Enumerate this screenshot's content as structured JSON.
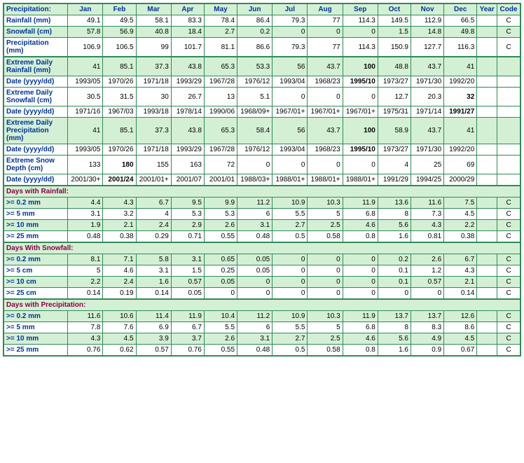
{
  "colors": {
    "border": "#2e8b57",
    "alt_bg": "#d4f0d4",
    "label_fg": "#003399",
    "section_fg": "#880044"
  },
  "header": [
    "Precipitation:",
    "Jan",
    "Feb",
    "Mar",
    "Apr",
    "May",
    "Jun",
    "Jul",
    "Aug",
    "Sep",
    "Oct",
    "Nov",
    "Dec",
    "Year",
    "Code"
  ],
  "rows": [
    {
      "label": "Rainfall (mm)",
      "alt": false,
      "top": false,
      "vals": [
        "49.1",
        "49.5",
        "58.1",
        "83.3",
        "78.4",
        "86.4",
        "79.3",
        "77",
        "114.3",
        "149.5",
        "112.9",
        "66.5",
        "",
        "C"
      ],
      "bold": []
    },
    {
      "label": "Snowfall (cm)",
      "alt": true,
      "top": false,
      "vals": [
        "57.8",
        "56.9",
        "40.8",
        "18.4",
        "2.7",
        "0.2",
        "0",
        "0",
        "0",
        "1.5",
        "14.8",
        "49.8",
        "",
        "C"
      ],
      "bold": []
    },
    {
      "label": "Precipitation (mm)",
      "alt": false,
      "top": false,
      "vals": [
        "106.9",
        "106.5",
        "99",
        "101.7",
        "81.1",
        "86.6",
        "79.3",
        "77",
        "114.3",
        "150.9",
        "127.7",
        "116.3",
        "",
        "C"
      ],
      "bold": []
    },
    {
      "label": "Extreme Daily Rainfall (mm)",
      "alt": true,
      "top": true,
      "vals": [
        "41",
        "85.1",
        "37.3",
        "43.8",
        "65.3",
        "53.3",
        "56",
        "43.7",
        "100",
        "48.8",
        "43.7",
        "41",
        "",
        ""
      ],
      "bold": [
        8
      ]
    },
    {
      "label": "Date (yyyy/dd)",
      "alt": false,
      "top": false,
      "vals": [
        "1993/05",
        "1970/26",
        "1971/18",
        "1993/29",
        "1967/28",
        "1976/12",
        "1993/04",
        "1968/23",
        "1995/10",
        "1973/27",
        "1971/30",
        "1992/20",
        "",
        ""
      ],
      "bold": [
        8
      ]
    },
    {
      "label": "Extreme Daily Snowfall (cm)",
      "alt": false,
      "top": false,
      "vals": [
        "30.5",
        "31.5",
        "30",
        "26.7",
        "13",
        "5.1",
        "0",
        "0",
        "0",
        "12.7",
        "20.3",
        "32",
        "",
        ""
      ],
      "bold": [
        11
      ]
    },
    {
      "label": "Date (yyyy/dd)",
      "alt": false,
      "top": false,
      "vals": [
        "1971/16",
        "1967/03",
        "1993/18",
        "1978/14",
        "1990/06",
        "1968/09+",
        "1967/01+",
        "1967/01+",
        "1967/01+",
        "1975/31",
        "1971/14",
        "1991/27",
        "",
        ""
      ],
      "bold": [
        11
      ]
    },
    {
      "label": "Extreme Daily Precipitation (mm)",
      "alt": true,
      "top": false,
      "vals": [
        "41",
        "85.1",
        "37.3",
        "43.8",
        "65.3",
        "58.4",
        "56",
        "43.7",
        "100",
        "58.9",
        "43.7",
        "41",
        "",
        ""
      ],
      "bold": [
        8
      ]
    },
    {
      "label": "Date (yyyy/dd)",
      "alt": false,
      "top": false,
      "vals": [
        "1993/05",
        "1970/26",
        "1971/18",
        "1993/29",
        "1967/28",
        "1976/12",
        "1993/04",
        "1968/23",
        "1995/10",
        "1973/27",
        "1971/30",
        "1992/20",
        "",
        ""
      ],
      "bold": [
        8
      ]
    },
    {
      "label": "Extreme Snow Depth (cm)",
      "alt": false,
      "top": false,
      "vals": [
        "133",
        "180",
        "155",
        "163",
        "72",
        "0",
        "0",
        "0",
        "0",
        "4",
        "25",
        "69",
        "",
        ""
      ],
      "bold": [
        1
      ]
    },
    {
      "label": "Date (yyyy/dd)",
      "alt": false,
      "top": false,
      "vals": [
        "2001/30+",
        "2001/24",
        "2001/01+",
        "2001/07",
        "2001/01",
        "1988/03+",
        "1988/01+",
        "1988/01+",
        "1988/01+",
        "1991/29",
        "1994/25",
        "2000/29",
        "",
        ""
      ],
      "bold": [
        1
      ]
    }
  ],
  "sections": [
    {
      "title": "Days with Rainfall:",
      "rows": [
        {
          "label": ">= 0.2 mm",
          "alt": true,
          "vals": [
            "4.4",
            "4.3",
            "6.7",
            "9.5",
            "9.9",
            "11.2",
            "10.9",
            "10.3",
            "11.9",
            "13.6",
            "11.6",
            "7.5",
            "",
            "C"
          ]
        },
        {
          "label": ">= 5 mm",
          "alt": false,
          "vals": [
            "3.1",
            "3.2",
            "4",
            "5.3",
            "5.3",
            "6",
            "5.5",
            "5",
            "6.8",
            "8",
            "7.3",
            "4.5",
            "",
            "C"
          ]
        },
        {
          "label": ">= 10 mm",
          "alt": true,
          "vals": [
            "1.9",
            "2.1",
            "2.4",
            "2.9",
            "2.6",
            "3.1",
            "2.7",
            "2.5",
            "4.6",
            "5.6",
            "4.3",
            "2.2",
            "",
            "C"
          ]
        },
        {
          "label": ">= 25 mm",
          "alt": false,
          "vals": [
            "0.48",
            "0.38",
            "0.29",
            "0.71",
            "0.55",
            "0.48",
            "0.5",
            "0.58",
            "0.8",
            "1.6",
            "0.81",
            "0.38",
            "",
            "C"
          ]
        }
      ]
    },
    {
      "title": "Days With Snowfall:",
      "rows": [
        {
          "label": ">= 0.2 mm",
          "alt": true,
          "vals": [
            "8.1",
            "7.1",
            "5.8",
            "3.1",
            "0.65",
            "0.05",
            "0",
            "0",
            "0",
            "0.2",
            "2.6",
            "6.7",
            "",
            "C"
          ]
        },
        {
          "label": ">= 5 cm",
          "alt": false,
          "vals": [
            "5",
            "4.6",
            "3.1",
            "1.5",
            "0.25",
            "0.05",
            "0",
            "0",
            "0",
            "0.1",
            "1.2",
            "4.3",
            "",
            "C"
          ]
        },
        {
          "label": ">= 10 cm",
          "alt": true,
          "vals": [
            "2.2",
            "2.4",
            "1.6",
            "0.57",
            "0.05",
            "0",
            "0",
            "0",
            "0",
            "0.1",
            "0.57",
            "2.1",
            "",
            "C"
          ]
        },
        {
          "label": ">= 25 cm",
          "alt": false,
          "vals": [
            "0.14",
            "0.19",
            "0.14",
            "0.05",
            "0",
            "0",
            "0",
            "0",
            "0",
            "0",
            "0",
            "0.14",
            "",
            "C"
          ]
        }
      ]
    },
    {
      "title": "Days with Precipitation:",
      "rows": [
        {
          "label": ">= 0.2 mm",
          "alt": true,
          "vals": [
            "11.6",
            "10.6",
            "11.4",
            "11.9",
            "10.4",
            "11.2",
            "10.9",
            "10.3",
            "11.9",
            "13.7",
            "13.7",
            "12.6",
            "",
            "C"
          ]
        },
        {
          "label": ">= 5 mm",
          "alt": false,
          "vals": [
            "7.8",
            "7.6",
            "6.9",
            "6.7",
            "5.5",
            "6",
            "5.5",
            "5",
            "6.8",
            "8",
            "8.3",
            "8.6",
            "",
            "C"
          ]
        },
        {
          "label": ">= 10 mm",
          "alt": true,
          "vals": [
            "4.3",
            "4.5",
            "3.9",
            "3.7",
            "2.6",
            "3.1",
            "2.7",
            "2.5",
            "4.6",
            "5.6",
            "4.9",
            "4.5",
            "",
            "C"
          ]
        },
        {
          "label": ">= 25 mm",
          "alt": false,
          "vals": [
            "0.76",
            "0.62",
            "0.57",
            "0.76",
            "0.55",
            "0.48",
            "0.5",
            "0.58",
            "0.8",
            "1.6",
            "0.9",
            "0.67",
            "",
            "C"
          ]
        }
      ]
    }
  ]
}
